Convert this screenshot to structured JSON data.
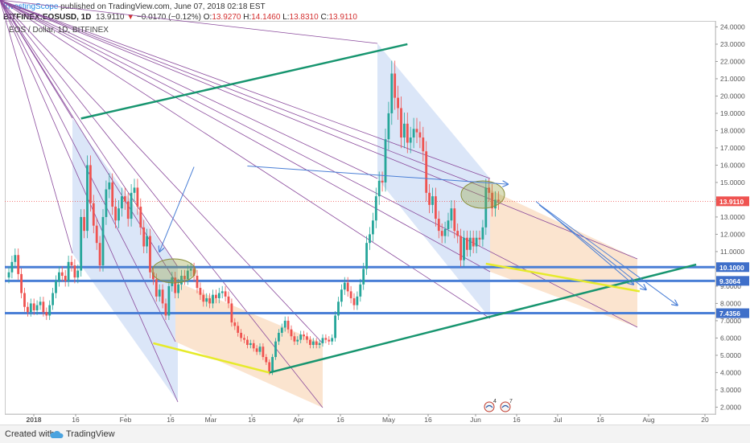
{
  "header": {
    "author": "InvestingScope",
    "published": "published on TradingView.com, June 07, 2018 02:18 EST",
    "symbol": "BITFINEX:EOSUSD, 1D",
    "last": "13.9110",
    "change": "−0.0170 (−0.12%)",
    "o_label": "O:",
    "o_val": "13.9270",
    "h_label": "H:",
    "h_val": "14.1460",
    "l_label": "L:",
    "l_val": "13.8310",
    "c_label": "C:",
    "c_val": "13.9110"
  },
  "legend": "EOS / Dollar, 1D, BITFINEX",
  "footer": {
    "created": "Created with",
    "brand": "TradingView"
  },
  "events": {
    "e1": "4",
    "e2": "7"
  },
  "colors": {
    "up": "#26a69a",
    "down": "#ef5350",
    "blue_channel": "#dbe6f8",
    "orange_channel": "#fbe4cf",
    "trend_green": "#17956f",
    "support_blue": "#4a7fd6",
    "highlight_yellow": "#e6ea2a",
    "last_price_bg": "#ef5350",
    "level_bg": "#3f6fc9"
  },
  "chart_data": {
    "type": "candlestick",
    "x_axis": {
      "labels": [
        "2018",
        "16",
        "Feb",
        "16",
        "Mar",
        "16",
        "Apr",
        "16",
        "May",
        "16",
        "Jun",
        "16",
        "Jul",
        "16",
        "Aug",
        "20"
      ],
      "first_bar": "2017-12-23",
      "last_bar": "2018-06-07"
    },
    "y_axis": {
      "min": 1.6,
      "max": 24.3,
      "ticks": [
        "2.0000",
        "3.0000",
        "4.0000",
        "5.0000",
        "6.0000",
        "7.0000",
        "8.0000",
        "9.0000",
        "10.0000",
        "11.0000",
        "12.0000",
        "13.0000",
        "14.0000",
        "15.0000",
        "16.0000",
        "17.0000",
        "18.0000",
        "19.0000",
        "20.0000",
        "21.0000",
        "22.0000",
        "23.0000",
        "24.0000"
      ]
    },
    "close": [
      9.8,
      10.4,
      10.8,
      9.7,
      8.6,
      7.8,
      7.5,
      8.0,
      7.6,
      7.9,
      8.1,
      7.5,
      7.3,
      7.9,
      8.6,
      9.3,
      9.8,
      9.6,
      9.3,
      10.4,
      10.2,
      9.5,
      9.9,
      13.0,
      12.2,
      16.0,
      13.8,
      12.5,
      11.5,
      10.2,
      13.0,
      14.6,
      15.0,
      13.6,
      12.8,
      13.5,
      14.2,
      13.9,
      12.9,
      14.4,
      14.7,
      13.6,
      12.4,
      11.3,
      11.9,
      9.8,
      9.4,
      8.4,
      8.8,
      8.0,
      7.3,
      9.0,
      9.5,
      8.6,
      9.1,
      9.6,
      9.4,
      9.9,
      10.0,
      9.6,
      8.9,
      8.5,
      8.1,
      8.3,
      8.0,
      8.5,
      8.3,
      8.6,
      8.7,
      8.4,
      8.0,
      6.9,
      6.7,
      6.3,
      6.0,
      5.9,
      5.6,
      5.7,
      5.4,
      5.2,
      5.5,
      4.9,
      4.6,
      4.0,
      4.9,
      5.8,
      6.3,
      6.6,
      7.0,
      6.5,
      6.1,
      5.8,
      5.9,
      6.2,
      6.1,
      5.9,
      5.6,
      5.8,
      5.6,
      5.7,
      6.0,
      5.9,
      5.8,
      6.0,
      7.3,
      8.1,
      8.8,
      9.2,
      8.7,
      8.3,
      7.9,
      8.4,
      9.1,
      10.0,
      11.5,
      12.0,
      12.8,
      14.2,
      15.1,
      15.0,
      17.5,
      19.0,
      21.3,
      19.9,
      19.3,
      17.6,
      18.4,
      17.3,
      17.6,
      18.1,
      17.9,
      17.6,
      16.8,
      14.4,
      13.7,
      14.2,
      12.9,
      12.2,
      11.9,
      12.3,
      12.8,
      13.5,
      12.2,
      11.9,
      10.5,
      11.8,
      11.1,
      11.8,
      11.3,
      11.8,
      11.7,
      12.4,
      14.7,
      14.4,
      13.5,
      14.0,
      13.9
    ],
    "trendlines": [
      {
        "from": [
          "2018-01-15",
          18.7
        ],
        "to": [
          "2018-04-29",
          23.0
        ]
      },
      {
        "from": [
          "2018-03-16",
          4.0
        ],
        "to": [
          "2018-07-30",
          10.25
        ]
      },
      {
        "from": [
          "2018-02-07",
          5.7
        ],
        "to": [
          "2018-03-16",
          4.0
        ]
      },
      {
        "from": [
          "2018-05-24",
          10.3
        ],
        "to": [
          "2018-07-12",
          8.7
        ]
      }
    ],
    "horizontal_levels": [
      "10.1000",
      "9.3064",
      "7.4356"
    ],
    "last_price_label": "13.9110",
    "arrows": [
      {
        "from": [
          "2018-02-20",
          15.9
        ],
        "to": [
          "2018-02-09",
          11.0
        ]
      },
      {
        "from": [
          "2018-03-09",
          15.95
        ],
        "to": [
          "2018-05-31",
          14.9
        ]
      },
      {
        "from": [
          "2018-06-09",
          13.9
        ],
        "to": [
          "2018-07-10",
          9.1
        ]
      },
      {
        "from": [
          "2018-06-10",
          13.7
        ],
        "to": [
          "2018-07-14",
          8.8
        ]
      },
      {
        "from": [
          "2018-06-11",
          13.6
        ],
        "to": [
          "2018-07-24",
          7.9
        ]
      }
    ]
  }
}
